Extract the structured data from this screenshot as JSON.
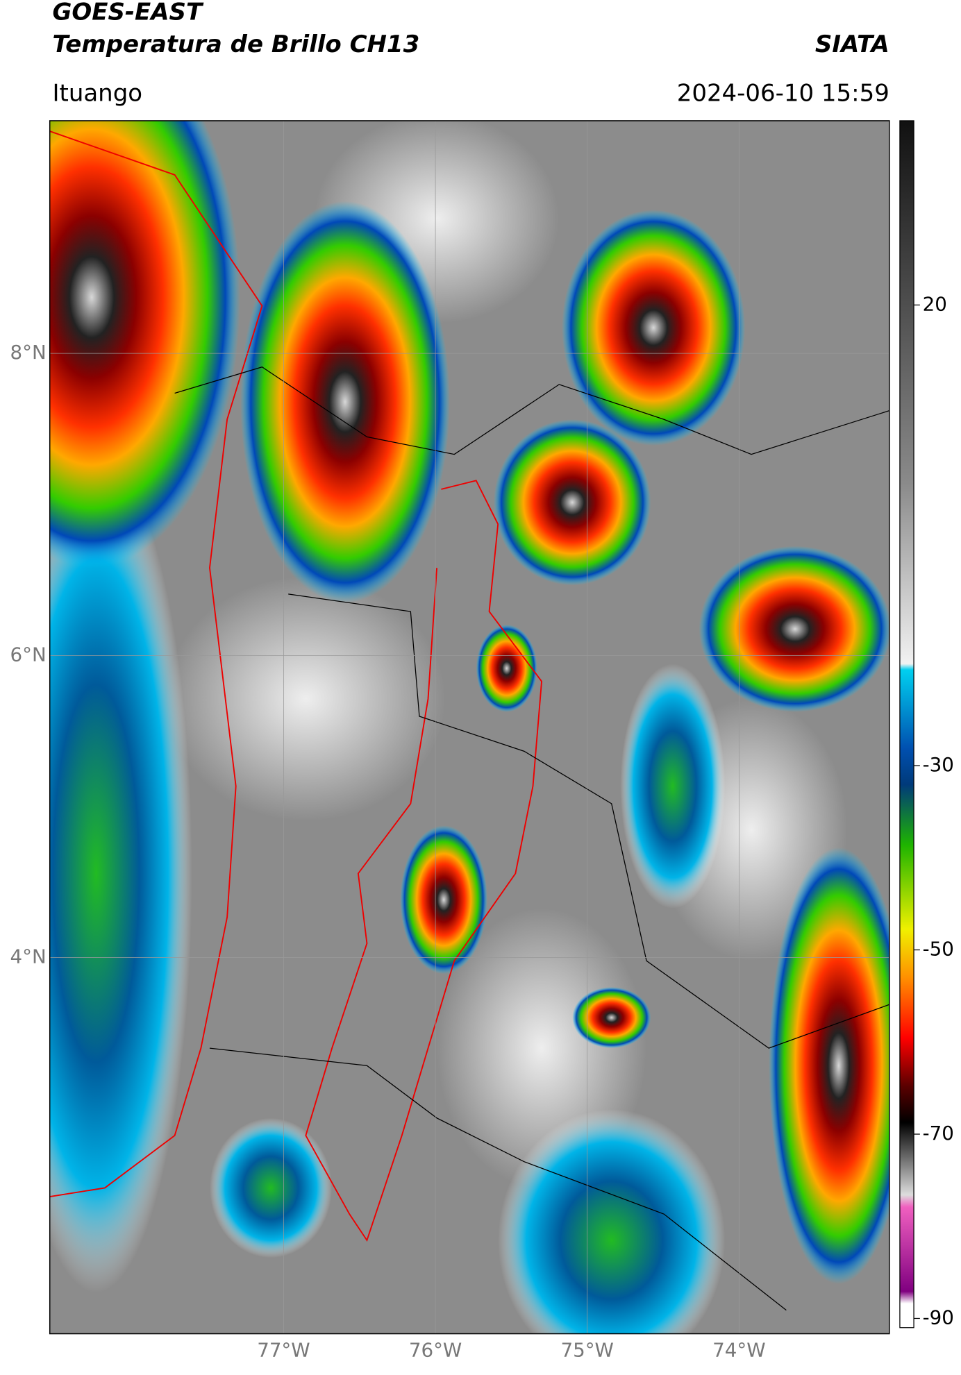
{
  "header": {
    "title": "GOES-EAST",
    "subtitle": "Temperatura de Brillo CH13",
    "brand": "SIATA",
    "location": "Ituango",
    "timestamp": "2024-06-10 15:59"
  },
  "map": {
    "lat_range": [
      1.51,
      9.54
    ],
    "lon_range": [
      -78.54,
      -73.01
    ],
    "lat_ticks": [
      {
        "value": 8,
        "label": "8°N"
      },
      {
        "value": 6,
        "label": "6°N"
      },
      {
        "value": 4,
        "label": "4°N"
      }
    ],
    "lon_ticks": [
      {
        "value": -77,
        "label": "77°W"
      },
      {
        "value": -76,
        "label": "76°W"
      },
      {
        "value": -75,
        "label": "75°W"
      },
      {
        "value": -74,
        "label": "74°W"
      }
    ]
  },
  "colorbar": {
    "range": [
      -91,
      40
    ],
    "ticks": [
      20,
      -30,
      -50,
      -70,
      -90
    ]
  }
}
